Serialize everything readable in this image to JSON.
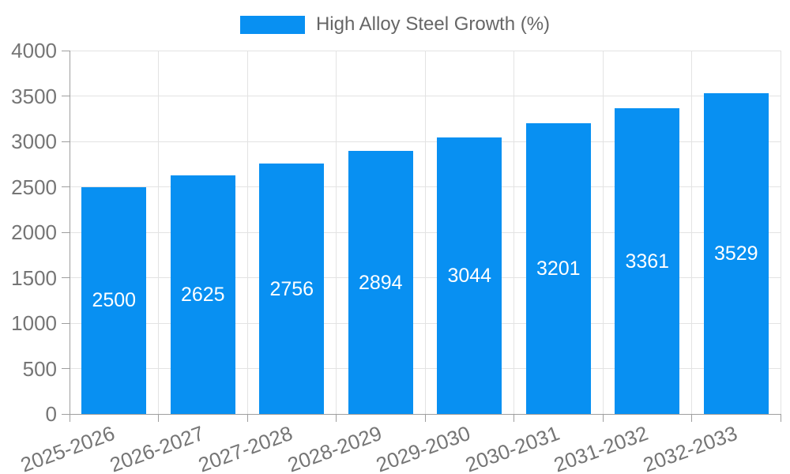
{
  "chart_data": {
    "type": "bar",
    "title": "",
    "legend": [
      "High Alloy Steel Growth (%)"
    ],
    "legend_position": "top-center",
    "categories": [
      "2025-2026",
      "2026-2027",
      "2027-2028",
      "2028-2029",
      "2029-2030",
      "2030-2031",
      "2031-2032",
      "2032-2033"
    ],
    "series": [
      {
        "name": "High Alloy Steel Growth (%)",
        "values": [
          2500,
          2625,
          2756,
          2894,
          3044,
          3201,
          3361,
          3529
        ]
      }
    ],
    "xlabel": "",
    "ylabel": "",
    "ylim": [
      0,
      4000
    ],
    "yticks": [
      0,
      500,
      1000,
      1500,
      2000,
      2500,
      3000,
      3500,
      4000
    ],
    "grid": true,
    "value_labels": "centered-inside-bars",
    "xtick_rotation_deg": -20,
    "colors": {
      "bar": "#0890F2",
      "value_label": "#FFFFFF",
      "grid": "#E3E3E3",
      "axis": "#9E9E9E",
      "tick_label": "#757575",
      "legend_text": "#666666",
      "background": "#FFFFFF"
    }
  }
}
